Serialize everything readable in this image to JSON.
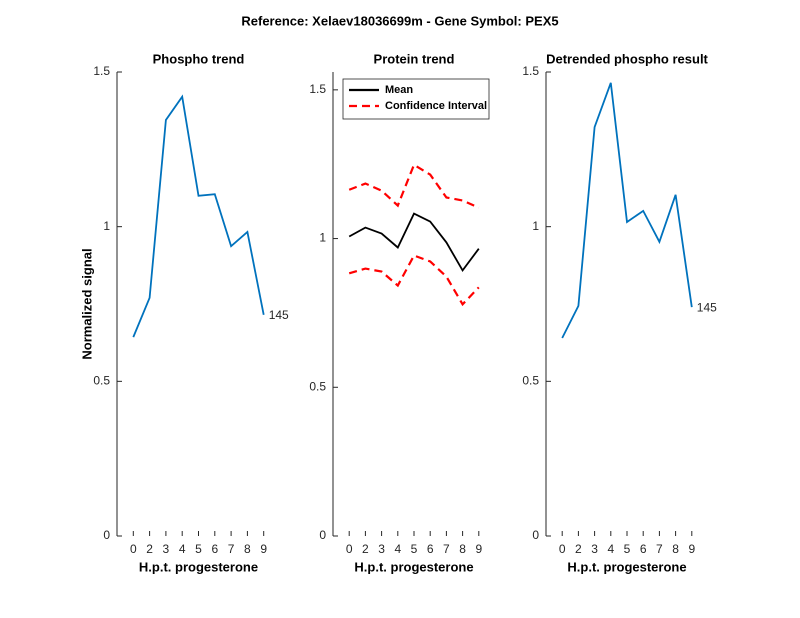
{
  "title": "Reference:  Xelaev18036699m - Gene Symbol:  PEX5",
  "chart_data": [
    {
      "type": "line",
      "title": "Phospho trend",
      "xlabel": "H.p.t. progesterone",
      "ylabel": "Normalized signal",
      "categories": [
        "0",
        "2",
        "3",
        "4",
        "5",
        "6",
        "7",
        "8",
        "9"
      ],
      "series": [
        {
          "color": "#0072bd",
          "values": [
            0.643,
            0.77,
            1.345,
            1.42,
            1.1,
            1.105,
            0.937,
            0.983,
            0.715
          ]
        }
      ],
      "annotation": "145",
      "ylim": [
        0,
        1.5
      ],
      "yticks": [
        0,
        0.5,
        1,
        1.5
      ]
    },
    {
      "type": "line",
      "title": "Protein trend",
      "xlabel": "H.p.t. progesterone",
      "categories": [
        "0",
        "2",
        "3",
        "4",
        "5",
        "6",
        "7",
        "8",
        "9"
      ],
      "series": [
        {
          "name": "Mean",
          "color": "#000000",
          "values": [
            1.007,
            1.037,
            1.017,
            0.97,
            1.084,
            1.057,
            0.987,
            0.893,
            0.966
          ]
        },
        {
          "name": "Confidence Interval",
          "color": "#ff0000",
          "dashed": true,
          "values": [
            1.164,
            1.185,
            1.161,
            1.111,
            1.248,
            1.215,
            1.138,
            1.128,
            1.104
          ],
          "lower": [
            0.883,
            0.899,
            0.889,
            0.842,
            0.943,
            0.923,
            0.872,
            0.779,
            0.836
          ]
        }
      ],
      "legend": "upper left",
      "ylim": [
        0,
        1.56
      ],
      "yticks": [
        0,
        0.5,
        1,
        1.5
      ]
    },
    {
      "type": "line",
      "title": "Detrended phospho result",
      "xlabel": "H.p.t. progesterone",
      "categories": [
        "0",
        "2",
        "3",
        "4",
        "5",
        "6",
        "7",
        "8",
        "9"
      ],
      "series": [
        {
          "color": "#0072bd",
          "values": [
            0.64,
            0.744,
            1.322,
            1.465,
            1.015,
            1.051,
            0.951,
            1.103,
            0.74
          ]
        }
      ],
      "annotation": "145",
      "ylim": [
        0,
        1.5
      ],
      "yticks": [
        0,
        0.5,
        1,
        1.5
      ]
    }
  ]
}
